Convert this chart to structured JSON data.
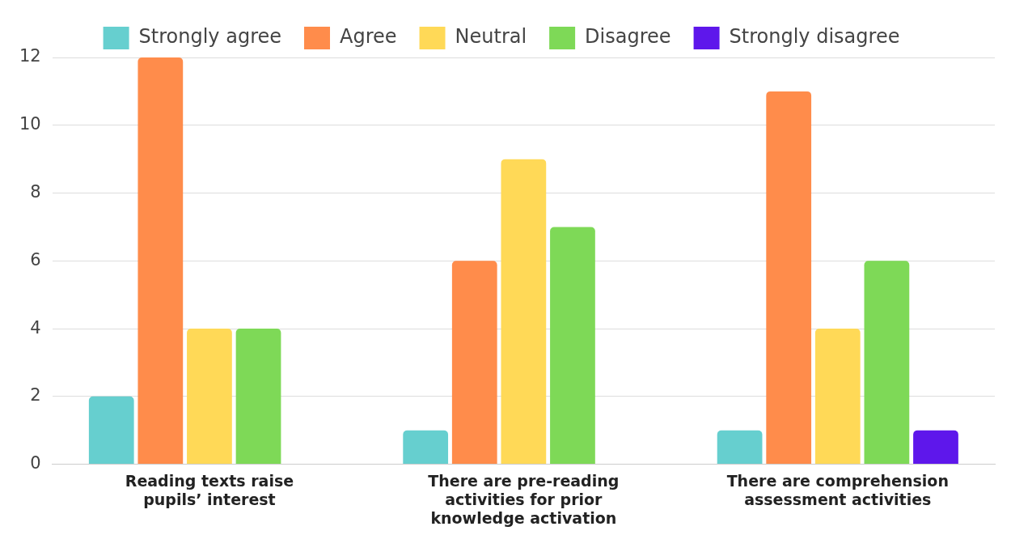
{
  "chart_data": {
    "type": "bar",
    "categories": [
      "Reading texts raise pupils’ interest",
      "There are pre-reading activities for prior knowledge activation",
      "There are comprehension assessment activities"
    ],
    "series": [
      {
        "name": "Strongly agree",
        "color": "#66cfcf",
        "values": [
          2,
          1,
          1
        ]
      },
      {
        "name": "Agree",
        "color": "#ff8c4b",
        "values": [
          12,
          6,
          11
        ]
      },
      {
        "name": "Neutral",
        "color": "#ffd957",
        "values": [
          4,
          9,
          4
        ]
      },
      {
        "name": "Disagree",
        "color": "#7ed957",
        "values": [
          4,
          7,
          6
        ]
      },
      {
        "name": "Strongly disagree",
        "color": "#5e17eb",
        "values": [
          0,
          0,
          1
        ]
      }
    ],
    "ylim": [
      0,
      12
    ],
    "yticks": [
      0,
      2,
      4,
      6,
      8,
      10,
      12
    ],
    "grid": "y",
    "legend": "top"
  }
}
